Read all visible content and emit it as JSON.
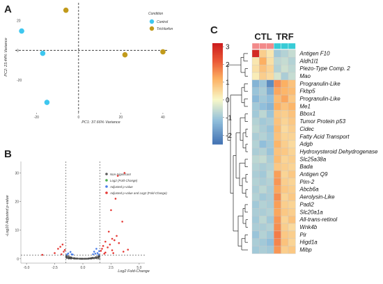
{
  "chart_data": [
    {
      "panel": "A",
      "type": "scatter",
      "xlabel": "PC1: 37.66% Variance",
      "ylabel": "PC2: 23.44% Variance",
      "xlim": [
        -30,
        42
      ],
      "ylim": [
        -42,
        32
      ],
      "xticks": [
        -20,
        0,
        20,
        40
      ],
      "yticks": [
        -20,
        0,
        20
      ],
      "legend_title": "Condition",
      "legend_position": "top-right",
      "series": [
        {
          "name": "Control",
          "color": "#3ec7ef",
          "points": [
            [
              -27,
              13
            ],
            [
              -17,
              -2
            ],
            [
              -15,
              -35
            ]
          ]
        },
        {
          "name": "Trichlorfon",
          "color": "#c19a1b",
          "points": [
            [
              -6,
              27
            ],
            [
              22,
              -3
            ],
            [
              40,
              -1
            ]
          ]
        }
      ]
    },
    {
      "panel": "B",
      "type": "scatter",
      "xlabel": "Log2 Fold-Change",
      "ylabel": "-Log10 Adjusted p-value",
      "xlim": [
        -5.5,
        5.5
      ],
      "ylim": [
        -1.5,
        34
      ],
      "xticks": [
        -5.0,
        -2.5,
        0.0,
        2.5,
        5.0
      ],
      "xtick_labels": [
        "-5.0",
        "-2.5",
        "0.0",
        "2.5",
        "5.0"
      ],
      "yticks": [
        0,
        10,
        20,
        30
      ],
      "thresholds": {
        "fc": [
          -1.5,
          1.5
        ],
        "p": 1.3
      },
      "legend_position": "top-right",
      "legend": [
        {
          "name": "Non-Significant",
          "color": "#5a5a5a"
        },
        {
          "name": "Log2 (Fold-Change)",
          "color": "#4caf50"
        },
        {
          "name": "Adjusted p-value",
          "color": "#4a7ee8"
        },
        {
          "name": "Adjusted p-value and Log2 (Fold-Change)",
          "color": "#e53935"
        }
      ],
      "points_red": [
        [
          3.7,
          30
        ],
        [
          3.1,
          29
        ],
        [
          2.9,
          21
        ],
        [
          2.5,
          17
        ],
        [
          3.5,
          13
        ],
        [
          2.3,
          9.5
        ],
        [
          3.0,
          8
        ],
        [
          2.6,
          7
        ],
        [
          2.8,
          6.5
        ],
        [
          2.0,
          6
        ],
        [
          3.2,
          5.5
        ],
        [
          2.4,
          5
        ],
        [
          1.8,
          4.5
        ],
        [
          2.2,
          4
        ],
        [
          1.7,
          3.5
        ],
        [
          2.6,
          3
        ],
        [
          3.6,
          2.5
        ],
        [
          2.0,
          2.2
        ],
        [
          1.9,
          1.8
        ],
        [
          4.0,
          3.2
        ],
        [
          1.6,
          2.8
        ],
        [
          2.7,
          2.0
        ],
        [
          -1.8,
          5
        ],
        [
          -2.2,
          3.5
        ],
        [
          -1.7,
          2.5
        ],
        [
          -2.5,
          2
        ],
        [
          -1.9,
          1.6
        ],
        [
          -3.6,
          1.4
        ],
        [
          -2.0,
          4.2
        ],
        [
          -1.6,
          3.1
        ]
      ],
      "points_blue": [
        [
          1.2,
          3.5
        ],
        [
          1.0,
          2.5
        ],
        [
          1.3,
          2.0
        ],
        [
          1.1,
          1.8
        ],
        [
          1.4,
          1.5
        ],
        [
          0.9,
          1.6
        ],
        [
          -1.1,
          2.4
        ],
        [
          -1.3,
          1.9
        ],
        [
          -1.0,
          1.6
        ],
        [
          -1.4,
          1.5
        ],
        [
          -0.9,
          1.5
        ],
        [
          1.45,
          2.7
        ]
      ],
      "grey_n": 180
    },
    {
      "panel": "C",
      "type": "heatmap",
      "groups": [
        {
          "name": "CTL",
          "color": "#f28a8a",
          "n": 3
        },
        {
          "name": "TRF",
          "color": "#38cbd6",
          "n": 3
        }
      ],
      "color_scale": {
        "min": -2.5,
        "max": 3.2,
        "ticks": [
          3,
          2,
          1,
          0,
          -1,
          -2
        ]
      },
      "rows": [
        "Antigen F10",
        "Aldh1l1",
        "Piezo-Type Comp. 2",
        "Mao",
        "Progranulin-Like",
        "Fkbp5",
        "Progranulin-Like",
        "Me1",
        "Bbox1",
        "Tumor Protein p53",
        "Cidec",
        "Fatty Acid Transport",
        "Adgb",
        "Hydroxysteroid Dehydrogenase",
        "Slc25a38a",
        "Bada",
        "Antigen Q9",
        "Pim-2",
        "Abcb6a",
        "Aerolysin-Like",
        "Padi2",
        "Slc20a1a",
        "All-trans-retinol",
        "Wnk4b",
        "Pir",
        "Higd1a",
        "Mibp"
      ],
      "values": [
        [
          3.0,
          0.7,
          0.3,
          -1.0,
          -0.8,
          -0.6
        ],
        [
          0.3,
          1.2,
          0.4,
          -0.7,
          -0.6,
          -0.8
        ],
        [
          0.4,
          0.9,
          0.6,
          -0.8,
          -0.5,
          -0.7
        ],
        [
          0.2,
          0.7,
          0.5,
          -0.4,
          -0.9,
          -0.6
        ],
        [
          -1.4,
          -1.1,
          -2.1,
          1.6,
          1.2,
          0.9
        ],
        [
          -1.1,
          -0.9,
          -1.5,
          1.3,
          1.1,
          1.0
        ],
        [
          -1.3,
          -1.0,
          -1.2,
          1.0,
          1.3,
          0.8
        ],
        [
          -1.0,
          -1.2,
          -1.4,
          1.2,
          0.9,
          1.1
        ],
        [
          -1.0,
          -0.7,
          -1.1,
          0.8,
          0.7,
          0.9
        ],
        [
          -0.8,
          -1.0,
          -0.9,
          0.9,
          0.6,
          0.8
        ],
        [
          -0.7,
          -0.9,
          -1.1,
          1.0,
          0.5,
          0.7
        ],
        [
          -0.9,
          -0.8,
          -1.0,
          0.9,
          0.6,
          0.6
        ],
        [
          -0.8,
          -1.2,
          -1.0,
          1.1,
          0.7,
          0.5
        ],
        [
          -0.9,
          -0.8,
          -1.1,
          0.9,
          0.8,
          0.6
        ],
        [
          -0.7,
          -0.6,
          -0.9,
          1.0,
          0.6,
          0.7
        ],
        [
          -0.8,
          -0.9,
          -0.8,
          0.8,
          0.7,
          0.6
        ],
        [
          -0.9,
          -1.0,
          -0.7,
          1.4,
          0.6,
          0.8
        ],
        [
          -0.8,
          -0.9,
          -0.8,
          1.5,
          0.7,
          0.6
        ],
        [
          -0.9,
          -0.7,
          -0.9,
          1.3,
          0.8,
          0.7
        ],
        [
          -0.8,
          -1.0,
          -0.9,
          1.6,
          0.6,
          0.8
        ],
        [
          -1.0,
          -0.8,
          -0.9,
          1.4,
          0.7,
          0.6
        ],
        [
          -0.9,
          -0.9,
          -0.8,
          1.3,
          0.8,
          0.7
        ],
        [
          -1.0,
          -0.7,
          -1.0,
          1.5,
          0.6,
          0.9
        ],
        [
          -0.9,
          -0.9,
          -0.8,
          1.6,
          0.7,
          0.5
        ],
        [
          -1.1,
          -0.8,
          -1.0,
          1.8,
          0.8,
          0.7
        ],
        [
          -0.9,
          -1.0,
          -1.2,
          1.7,
          0.9,
          0.6
        ],
        [
          -1.0,
          -0.9,
          -1.0,
          1.5,
          0.7,
          0.8
        ]
      ]
    }
  ]
}
